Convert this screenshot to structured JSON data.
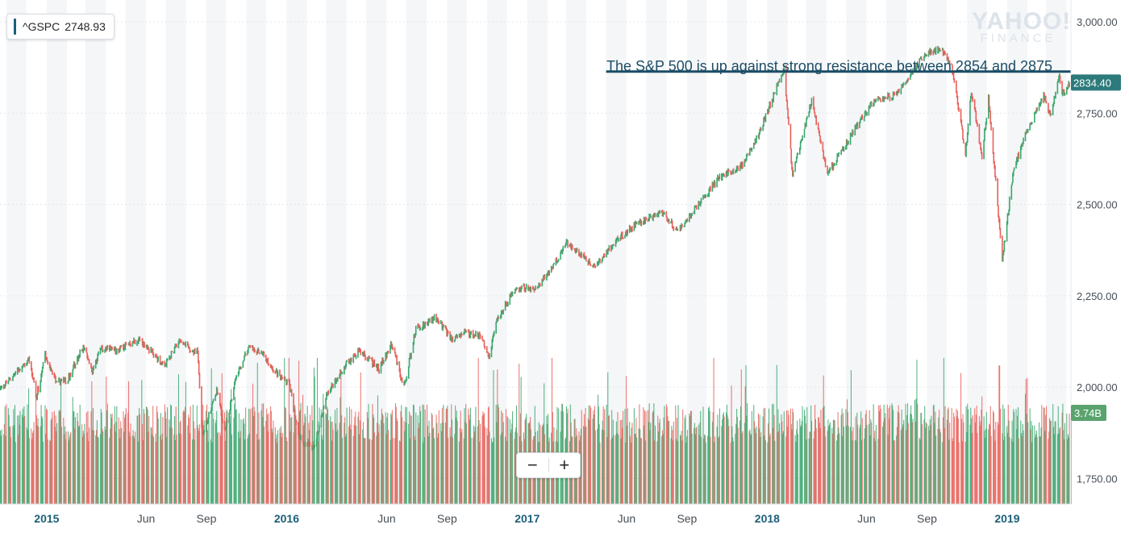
{
  "ticker": {
    "symbol": "^GSPC",
    "value": "2748.93",
    "accent": "#1c5f7a"
  },
  "watermark": {
    "top": "YAHOO!",
    "bottom": "FINANCE"
  },
  "annotation": "The S&P 500 is up against strong resistance between 2854 and 2875",
  "zoom": {
    "minus": "−",
    "plus": "+"
  },
  "colors": {
    "up": "#3aa76d",
    "down": "#e8605a",
    "annotation_line": "#1c4d66",
    "price_tag": "#2c7a7b",
    "band": "#f4f6f8"
  },
  "chart_data": {
    "type": "line",
    "ylim": [
      1680,
      3060
    ],
    "y_ticks": [
      "3,000.00",
      "2,750.00",
      "2,500.00",
      "2,250.00",
      "2,000.00",
      "1,750.00"
    ],
    "y_tick_values": [
      3000,
      2750,
      2500,
      2250,
      2000,
      1750
    ],
    "x_ticks": [
      "2015",
      "Jun",
      "Sep",
      "2016",
      "Jun",
      "Sep",
      "2017",
      "Jun",
      "Sep",
      "2018",
      "Jun",
      "Sep",
      "2019"
    ],
    "x_tick_dates": [
      "2015-01-01",
      "2015-06-01",
      "2015-09-01",
      "2016-01-01",
      "2016-06-01",
      "2016-09-01",
      "2017-01-01",
      "2017-06-01",
      "2017-09-01",
      "2018-01-01",
      "2018-06-01",
      "2018-09-01",
      "2019-01-01"
    ],
    "x_range": [
      "2014-10-22",
      "2019-04-08"
    ],
    "price_series": {
      "name": "^GSPC",
      "points": [
        [
          "2014-10-22",
          1995
        ],
        [
          "2014-11-05",
          2020
        ],
        [
          "2014-11-20",
          2050
        ],
        [
          "2014-12-05",
          2075
        ],
        [
          "2014-12-16",
          1972
        ],
        [
          "2014-12-29",
          2090
        ],
        [
          "2015-01-15",
          2010
        ],
        [
          "2015-02-01",
          2020
        ],
        [
          "2015-02-25",
          2110
        ],
        [
          "2015-03-11",
          2045
        ],
        [
          "2015-03-23",
          2105
        ],
        [
          "2015-04-15",
          2100
        ],
        [
          "2015-05-21",
          2130
        ],
        [
          "2015-06-15",
          2085
        ],
        [
          "2015-06-29",
          2055
        ],
        [
          "2015-07-20",
          2130
        ],
        [
          "2015-08-10",
          2100
        ],
        [
          "2015-08-18",
          2095
        ],
        [
          "2015-08-25",
          1868
        ],
        [
          "2015-09-16",
          1990
        ],
        [
          "2015-09-28",
          1882
        ],
        [
          "2015-10-15",
          2020
        ],
        [
          "2015-11-03",
          2110
        ],
        [
          "2015-11-25",
          2090
        ],
        [
          "2015-12-10",
          2050
        ],
        [
          "2016-01-04",
          2010
        ],
        [
          "2016-01-20",
          1860
        ],
        [
          "2016-02-11",
          1829
        ],
        [
          "2016-03-01",
          1980
        ],
        [
          "2016-03-30",
          2060
        ],
        [
          "2016-04-20",
          2100
        ],
        [
          "2016-05-20",
          2050
        ],
        [
          "2016-06-08",
          2120
        ],
        [
          "2016-06-27",
          2000
        ],
        [
          "2016-07-15",
          2160
        ],
        [
          "2016-08-15",
          2190
        ],
        [
          "2016-09-09",
          2127
        ],
        [
          "2016-09-25",
          2150
        ],
        [
          "2016-10-20",
          2140
        ],
        [
          "2016-11-04",
          2085
        ],
        [
          "2016-11-15",
          2180
        ],
        [
          "2016-12-13",
          2270
        ],
        [
          "2017-01-15",
          2270
        ],
        [
          "2017-02-15",
          2350
        ],
        [
          "2017-03-01",
          2395
        ],
        [
          "2017-04-13",
          2330
        ],
        [
          "2017-05-15",
          2400
        ],
        [
          "2017-06-19",
          2450
        ],
        [
          "2017-07-25",
          2480
        ],
        [
          "2017-08-18",
          2425
        ],
        [
          "2017-09-20",
          2505
        ],
        [
          "2017-10-20",
          2575
        ],
        [
          "2017-11-20",
          2600
        ],
        [
          "2017-12-18",
          2690
        ],
        [
          "2018-01-26",
          2873
        ],
        [
          "2018-02-08",
          2581
        ],
        [
          "2018-03-09",
          2786
        ],
        [
          "2018-04-02",
          2582
        ],
        [
          "2018-05-15",
          2710
        ],
        [
          "2018-06-12",
          2786
        ],
        [
          "2018-07-15",
          2800
        ],
        [
          "2018-08-29",
          2914
        ],
        [
          "2018-09-20",
          2930
        ],
        [
          "2018-10-08",
          2880
        ],
        [
          "2018-10-29",
          2641
        ],
        [
          "2018-11-07",
          2813
        ],
        [
          "2018-11-23",
          2632
        ],
        [
          "2018-12-03",
          2790
        ],
        [
          "2018-12-24",
          2351
        ],
        [
          "2019-01-10",
          2595
        ],
        [
          "2019-01-31",
          2704
        ],
        [
          "2019-02-25",
          2796
        ],
        [
          "2019-03-08",
          2743
        ],
        [
          "2019-03-21",
          2854
        ],
        [
          "2019-03-25",
          2800
        ],
        [
          "2019-04-08",
          2834
        ]
      ]
    },
    "volume_series": {
      "name": "Volume",
      "typical": 3.6,
      "max": 6.0,
      "unit": "B"
    },
    "annotation_line": {
      "from_date": "2017-05-01",
      "value": 2864
    },
    "current_price": "2834.40",
    "current_volume": "3.74B",
    "grid": true
  }
}
